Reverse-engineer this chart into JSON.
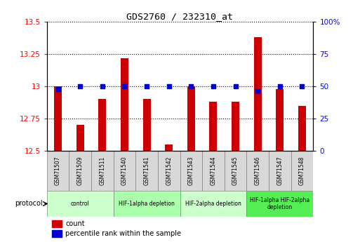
{
  "title": "GDS2760 / 232310_at",
  "samples": [
    "GSM71507",
    "GSM71509",
    "GSM71511",
    "GSM71540",
    "GSM71541",
    "GSM71542",
    "GSM71543",
    "GSM71544",
    "GSM71545",
    "GSM71546",
    "GSM71547",
    "GSM71548"
  ],
  "counts": [
    13.0,
    12.7,
    12.9,
    13.22,
    12.9,
    12.55,
    13.0,
    12.88,
    12.88,
    13.38,
    12.98,
    12.85
  ],
  "percentiles": [
    48,
    50,
    50,
    50,
    50,
    50,
    50,
    50,
    50,
    46,
    50,
    50
  ],
  "ylim_left": [
    12.5,
    13.5
  ],
  "ylim_right": [
    0,
    100
  ],
  "yticks_left": [
    12.5,
    12.75,
    13.0,
    13.25,
    13.5
  ],
  "yticks_right": [
    0,
    25,
    50,
    75,
    100
  ],
  "ytick_labels_left": [
    "12.5",
    "12.75",
    "13",
    "13.25",
    "13.5"
  ],
  "ytick_labels_right": [
    "0",
    "25",
    "50",
    "75",
    "100%"
  ],
  "bar_color": "#cc0000",
  "dot_color": "#0000cc",
  "protocol_groups": [
    {
      "label": "control",
      "start": 0,
      "end": 2,
      "color": "#ccffcc"
    },
    {
      "label": "HIF-1alpha depletion",
      "start": 3,
      "end": 5,
      "color": "#aaffaa"
    },
    {
      "label": "HIF-2alpha depletion",
      "start": 6,
      "end": 8,
      "color": "#ccffcc"
    },
    {
      "label": "HIF-1alpha HIF-2alpha\ndepletion",
      "start": 9,
      "end": 11,
      "color": "#55ee55"
    }
  ],
  "legend_count_label": "count",
  "legend_pct_label": "percentile rank within the sample",
  "protocol_label": "protocol",
  "bar_width": 0.35
}
